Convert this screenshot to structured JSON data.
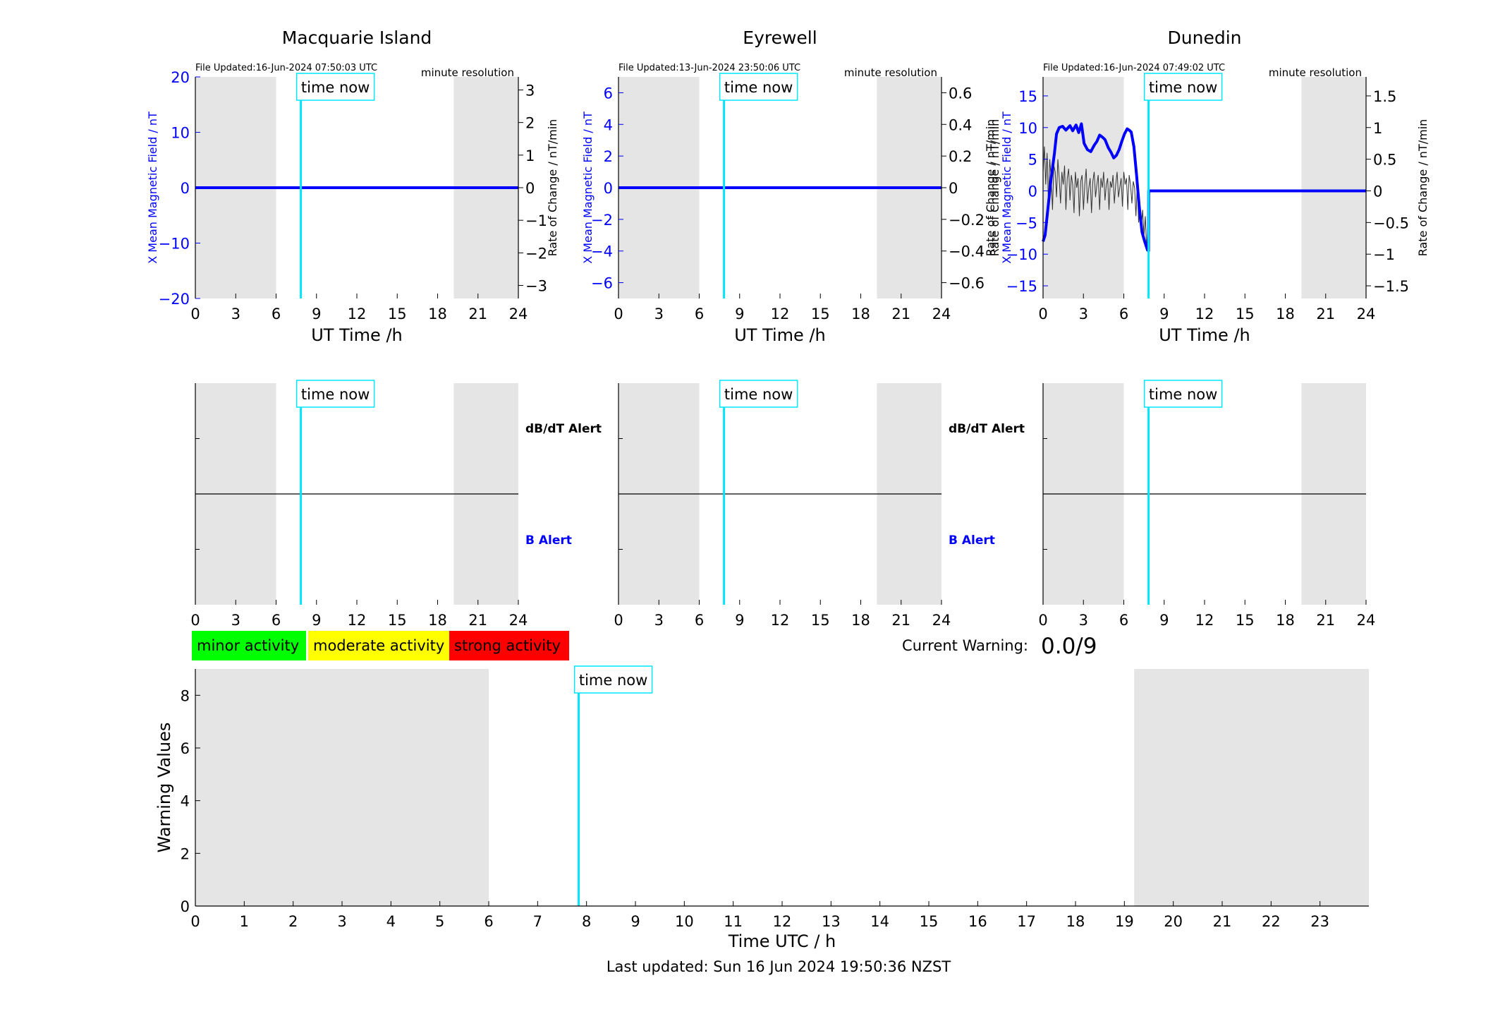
{
  "time_now_label": "time now",
  "time_now_hour": 7.84,
  "night_shading": [
    [
      0,
      6
    ],
    [
      19.2,
      24
    ]
  ],
  "colors": {
    "x_field": "#0000ff",
    "rate": "#555555",
    "time_now": "#00e5ff",
    "shade": "#e5e5e5",
    "minor": "#00ff00",
    "moderate": "#ffff00",
    "strong": "#ff0000"
  },
  "stations": [
    {
      "title": "Macquarie Island",
      "file_updated": "File Updated:16-Jun-2024 07:50:03 UTC",
      "resolution": "minute resolution",
      "ylabel_left": "X Mean Magnetic Field / nT",
      "ylabel_right": "Rate of Change / nT/min",
      "xlabel": "UT Time /h"
    },
    {
      "title": "Eyrewell",
      "file_updated": "File Updated:13-Jun-2024 23:50:06 UTC",
      "resolution": "minute resolution",
      "ylabel_left": "X Mean Magnetic Field / nT",
      "ylabel_right": "Rate of Change / nT/min",
      "xlabel": "UT Time /h"
    },
    {
      "title": "Dunedin",
      "file_updated": "File Updated:16-Jun-2024 07:49:02 UTC",
      "resolution": "minute resolution",
      "ylabel_left": "X Mean Magnetic Field / nT",
      "ylabel_right": "Rate of Change / nT/min",
      "xlabel": "UT Time /h"
    }
  ],
  "alert_labels": {
    "dbdt": "dB/dT Alert",
    "b": "B Alert"
  },
  "legend": {
    "minor": "minor activity",
    "moderate": "moderate activity",
    "strong": "strong activity"
  },
  "current_warning": {
    "label": "Current Warning:",
    "value": "0.0/9"
  },
  "warning_panel": {
    "ylabel": "Warning Values",
    "xlabel": "Time UTC / h"
  },
  "last_updated": "Last updated: Sun 16 Jun 2024 19:50:36 NZST",
  "chart_data": [
    {
      "type": "line",
      "panel": "Macquarie Island",
      "xlim": [
        0,
        24
      ],
      "x_ticks": [
        0,
        3,
        6,
        9,
        12,
        15,
        18,
        21,
        24
      ],
      "ylim_left": [
        -20,
        20
      ],
      "y_ticks_left": [
        -20,
        -10,
        0,
        10,
        20
      ],
      "ylim_right": [
        -3.4,
        3.4
      ],
      "y_ticks_right": [
        -3,
        -2,
        -1,
        0,
        1,
        2,
        3
      ],
      "series": [
        {
          "axis": "left",
          "style": "thick",
          "x": [
            0,
            24
          ],
          "y": [
            0,
            0
          ]
        },
        {
          "axis": "right",
          "style": "thin",
          "x": [
            0,
            24
          ],
          "y": [
            0,
            0
          ]
        }
      ]
    },
    {
      "type": "line",
      "panel": "Eyrewell",
      "xlim": [
        0,
        24
      ],
      "x_ticks": [
        0,
        3,
        6,
        9,
        12,
        15,
        18,
        21,
        24
      ],
      "ylim_left": [
        -7,
        7
      ],
      "y_ticks_left": [
        -6,
        -4,
        -2,
        0,
        2,
        4,
        6
      ],
      "ylim_right": [
        -0.7,
        0.7
      ],
      "y_ticks_right": [
        -0.6,
        -0.4,
        -0.2,
        0,
        0.2,
        0.4,
        0.6
      ],
      "series": [
        {
          "axis": "left",
          "style": "thick",
          "x": [
            0,
            24
          ],
          "y": [
            0,
            0
          ]
        },
        {
          "axis": "right",
          "style": "thin",
          "x": [
            0,
            24
          ],
          "y": [
            0,
            0
          ]
        }
      ]
    },
    {
      "type": "line",
      "panel": "Dunedin",
      "xlim": [
        0,
        24
      ],
      "x_ticks": [
        0,
        3,
        6,
        9,
        12,
        15,
        18,
        21,
        24
      ],
      "ylim_left": [
        -17,
        18
      ],
      "y_ticks_left": [
        -15,
        -10,
        -5,
        0,
        5,
        10,
        15
      ],
      "ylim_right": [
        -1.7,
        1.8
      ],
      "y_ticks_right": [
        -1.5,
        -1,
        -0.5,
        0,
        0.5,
        1,
        1.5
      ],
      "series": [
        {
          "axis": "left",
          "style": "thick",
          "x": [
            0,
            0.15,
            0.35,
            0.6,
            0.85,
            1.0,
            1.2,
            1.45,
            1.7,
            2.0,
            2.2,
            2.45,
            2.65,
            2.85,
            3.05,
            3.3,
            3.55,
            3.8,
            4.0,
            4.2,
            4.4,
            4.6,
            4.85,
            5.05,
            5.25,
            5.45,
            5.65,
            5.85,
            6.05,
            6.25,
            6.4,
            6.55,
            6.75,
            6.95,
            7.15,
            7.35,
            7.55,
            7.75,
            7.84,
            7.85,
            24
          ],
          "y": [
            -8,
            -7,
            -3,
            2,
            6,
            9,
            10,
            10.2,
            9.6,
            10.3,
            9.5,
            10.4,
            9.2,
            10.6,
            7.5,
            6.5,
            6.2,
            7.2,
            7.8,
            8.8,
            8.5,
            8.1,
            6.8,
            6.1,
            5.2,
            5.6,
            6.5,
            7.8,
            9.0,
            9.8,
            9.6,
            9.3,
            7.0,
            2.5,
            -2.5,
            -6.5,
            -8.0,
            -9.3,
            -9.5,
            0,
            0
          ]
        },
        {
          "axis": "right",
          "style": "thin",
          "x": [
            0,
            0.1,
            0.2,
            0.3,
            0.4,
            0.5,
            0.6,
            0.7,
            0.8,
            0.9,
            1.0,
            1.1,
            1.2,
            1.3,
            1.4,
            1.5,
            1.6,
            1.7,
            1.8,
            1.9,
            2.0,
            2.1,
            2.2,
            2.3,
            2.4,
            2.5,
            2.6,
            2.7,
            2.8,
            2.9,
            3.0,
            3.1,
            3.2,
            3.3,
            3.4,
            3.5,
            3.6,
            3.7,
            3.8,
            3.9,
            4.0,
            4.1,
            4.2,
            4.3,
            4.4,
            4.5,
            4.6,
            4.7,
            4.8,
            4.9,
            5.0,
            5.1,
            5.2,
            5.3,
            5.4,
            5.5,
            5.6,
            5.7,
            5.8,
            5.9,
            6.0,
            6.1,
            6.2,
            6.3,
            6.4,
            6.5,
            6.6,
            6.7,
            6.8,
            6.9,
            7.0,
            7.1,
            7.2,
            7.3,
            7.4,
            7.5,
            7.6,
            7.7,
            7.8,
            7.85,
            24
          ],
          "y": [
            0.3,
            0.7,
            0.1,
            0.6,
            -0.2,
            0.5,
            0.2,
            -0.3,
            0.4,
            0.3,
            -0.1,
            0.5,
            0.2,
            -0.2,
            0.3,
            0.1,
            0.4,
            -0.3,
            0.2,
            0.35,
            -0.15,
            0.25,
            0.1,
            -0.35,
            0.3,
            0.05,
            0.2,
            -0.4,
            0.15,
            0.25,
            -0.3,
            0.1,
            0.35,
            -0.2,
            0.05,
            0.2,
            -0.35,
            0.15,
            0.3,
            -0.1,
            0.1,
            0.25,
            -0.3,
            0.2,
            0.05,
            0.3,
            -0.15,
            0.1,
            0.2,
            -0.3,
            0.15,
            0.05,
            0.25,
            -0.2,
            0.1,
            0.3,
            -0.1,
            0.05,
            0.2,
            -0.25,
            0.3,
            0.1,
            0.2,
            -0.3,
            0.25,
            0.1,
            -0.2,
            0.15,
            0.05,
            -0.4,
            0.1,
            -0.5,
            -0.2,
            -0.6,
            -0.3,
            -0.7,
            -0.4,
            -0.95,
            -0.5,
            0,
            0
          ]
        }
      ]
    },
    {
      "type": "bar",
      "panel": "Warning Values",
      "xlim": [
        0,
        24
      ],
      "x_ticks": [
        0,
        1,
        2,
        3,
        4,
        5,
        6,
        7,
        8,
        9,
        10,
        11,
        12,
        13,
        14,
        15,
        16,
        17,
        18,
        19,
        20,
        21,
        22,
        23
      ],
      "ylim": [
        0,
        9
      ],
      "y_ticks": [
        0,
        2,
        4,
        6,
        8
      ],
      "values": []
    }
  ]
}
